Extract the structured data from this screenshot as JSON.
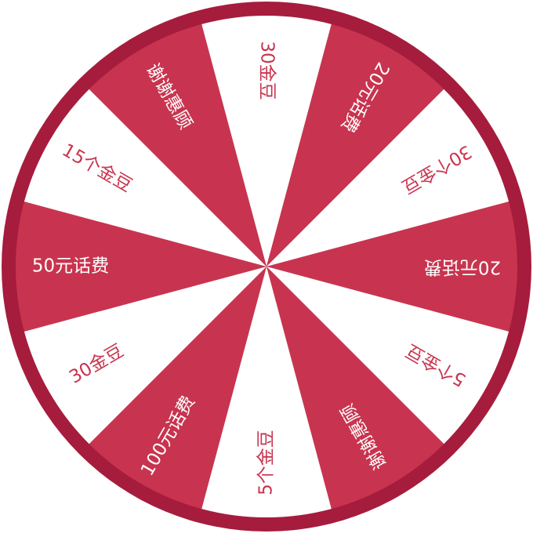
{
  "wheel": {
    "colors": {
      "rim": "#a61c3c",
      "primary": "#c8344f",
      "secondary": "#ffffff",
      "text_on_primary": "#ffffff",
      "text_on_secondary": "#c8344f"
    },
    "segments": [
      {
        "label": "30金豆",
        "fill": "secondary"
      },
      {
        "label": "20元话费",
        "fill": "primary"
      },
      {
        "label": "30个金豆",
        "fill": "secondary"
      },
      {
        "label": "20元话费",
        "fill": "primary"
      },
      {
        "label": "5个金豆",
        "fill": "secondary"
      },
      {
        "label": "谢谢惠顾",
        "fill": "primary"
      },
      {
        "label": "5个金豆",
        "fill": "secondary"
      },
      {
        "label": "100元话费",
        "fill": "primary"
      },
      {
        "label": "30金豆",
        "fill": "secondary"
      },
      {
        "label": "50元话费",
        "fill": "primary"
      },
      {
        "label": "15个金豆",
        "fill": "secondary"
      },
      {
        "label": "谢谢惠顾",
        "fill": "primary"
      }
    ]
  }
}
